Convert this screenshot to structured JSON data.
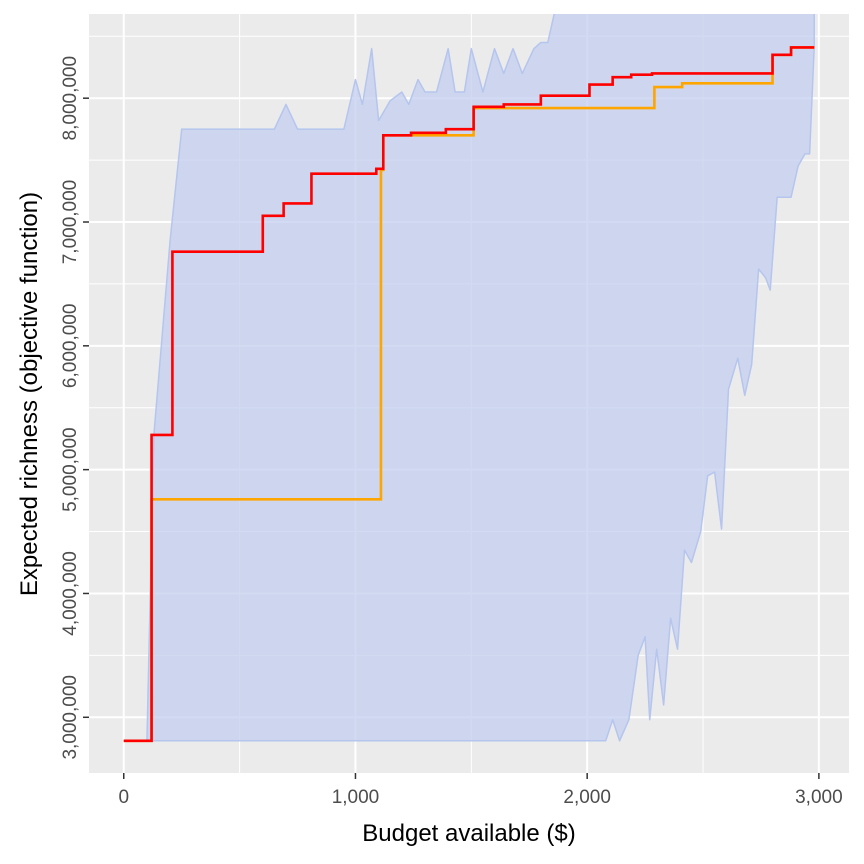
{
  "chart_data": {
    "type": "line",
    "title": "",
    "xlabel": "Budget available ($)",
    "ylabel": "Expected richness (objective function)",
    "xlim": [
      -150,
      3130
    ],
    "ylim": [
      2550000,
      8680000
    ],
    "x_ticks": [
      0,
      1000,
      2000,
      3000
    ],
    "x_tick_labels": [
      "0",
      "1,000",
      "2,000",
      "3,000"
    ],
    "y_ticks": [
      3000000,
      4000000,
      5000000,
      6000000,
      7000000,
      8000000
    ],
    "y_tick_labels": [
      "3,000,000",
      "4,000,000",
      "5,000,000",
      "6,000,000",
      "7,000,000",
      "8,000,000"
    ],
    "grid": true,
    "legend": "none",
    "colors": {
      "panel": "#ebebeb",
      "grid": "#ffffff",
      "ribbon_fill": "#c3cfef",
      "ribbon_edge": "#b5c5ee",
      "orange_line": "#ffa500",
      "red_line": "#ff0000"
    },
    "ribbon": {
      "upper": [
        [
          100,
          2810000
        ],
        [
          130,
          5280000
        ],
        [
          200,
          6850000
        ],
        [
          250,
          7750000
        ],
        [
          300,
          7750000
        ],
        [
          650,
          7750000
        ],
        [
          700,
          7950000
        ],
        [
          750,
          7750000
        ],
        [
          950,
          7750000
        ],
        [
          1000,
          8150000
        ],
        [
          1030,
          7950000
        ],
        [
          1070,
          8400000
        ],
        [
          1100,
          7820000
        ],
        [
          1150,
          7980000
        ],
        [
          1200,
          8050000
        ],
        [
          1230,
          7950000
        ],
        [
          1270,
          8150000
        ],
        [
          1300,
          8050000
        ],
        [
          1350,
          8050000
        ],
        [
          1400,
          8400000
        ],
        [
          1430,
          8050000
        ],
        [
          1470,
          8050000
        ],
        [
          1500,
          8400000
        ],
        [
          1550,
          8050000
        ],
        [
          1600,
          8400000
        ],
        [
          1640,
          8200000
        ],
        [
          1680,
          8400000
        ],
        [
          1720,
          8200000
        ],
        [
          1770,
          8400000
        ],
        [
          1800,
          8450000
        ],
        [
          1830,
          8450000
        ],
        [
          1860,
          8700000
        ],
        [
          1900,
          8700000
        ],
        [
          1950,
          8720000
        ],
        [
          2000,
          8850000
        ],
        [
          2050,
          8720000
        ],
        [
          2080,
          8720000
        ],
        [
          2110,
          8950000
        ],
        [
          2140,
          8750000
        ],
        [
          2180,
          8800000
        ],
        [
          2210,
          8950000
        ],
        [
          2240,
          8950000
        ],
        [
          2280,
          8850000
        ],
        [
          2310,
          8980000
        ],
        [
          2350,
          9020000
        ],
        [
          2380,
          9010000
        ],
        [
          2420,
          9100000
        ],
        [
          2460,
          9000000
        ],
        [
          2500,
          9100000
        ],
        [
          2550,
          9100000
        ],
        [
          2600,
          9100000
        ],
        [
          2650,
          9150000
        ],
        [
          2700,
          9150000
        ],
        [
          2760,
          9200000
        ],
        [
          2800,
          9340000
        ],
        [
          2900,
          9400000
        ],
        [
          2980,
          9400000
        ]
      ],
      "lower": [
        [
          100,
          2810000
        ],
        [
          130,
          2810000
        ],
        [
          2080,
          2810000
        ],
        [
          2110,
          2980000
        ],
        [
          2140,
          2810000
        ],
        [
          2180,
          2980000
        ],
        [
          2220,
          3500000
        ],
        [
          2250,
          3650000
        ],
        [
          2270,
          2980000
        ],
        [
          2300,
          3550000
        ],
        [
          2330,
          3100000
        ],
        [
          2360,
          3800000
        ],
        [
          2390,
          3550000
        ],
        [
          2420,
          4350000
        ],
        [
          2450,
          4250000
        ],
        [
          2490,
          4500000
        ],
        [
          2520,
          4950000
        ],
        [
          2550,
          4980000
        ],
        [
          2580,
          4520000
        ],
        [
          2610,
          5650000
        ],
        [
          2650,
          5900000
        ],
        [
          2680,
          5600000
        ],
        [
          2710,
          5850000
        ],
        [
          2740,
          6620000
        ],
        [
          2770,
          6550000
        ],
        [
          2790,
          6450000
        ],
        [
          2820,
          7200000
        ],
        [
          2850,
          7200000
        ],
        [
          2880,
          7200000
        ],
        [
          2910,
          7450000
        ],
        [
          2940,
          7550000
        ],
        [
          2960,
          7550000
        ],
        [
          2980,
          8420000
        ]
      ]
    },
    "series": [
      {
        "color": "#ffa500",
        "step": true,
        "points": [
          [
            0,
            2810000
          ],
          [
            120,
            2810000
          ],
          [
            120,
            4760000
          ],
          [
            1110,
            4760000
          ],
          [
            1110,
            7420000
          ],
          [
            1120,
            7420000
          ],
          [
            1120,
            7700000
          ],
          [
            1510,
            7700000
          ],
          [
            1510,
            7920000
          ],
          [
            2290,
            7920000
          ],
          [
            2290,
            8090000
          ],
          [
            2410,
            8090000
          ],
          [
            2410,
            8120000
          ],
          [
            2800,
            8120000
          ],
          [
            2800,
            8350000
          ],
          [
            2880,
            8350000
          ],
          [
            2880,
            8410000
          ],
          [
            2980,
            8410000
          ]
        ]
      },
      {
        "color": "#ff0000",
        "step": true,
        "points": [
          [
            0,
            2810000
          ],
          [
            120,
            2810000
          ],
          [
            120,
            5280000
          ],
          [
            210,
            5280000
          ],
          [
            210,
            6760000
          ],
          [
            600,
            6760000
          ],
          [
            600,
            7050000
          ],
          [
            690,
            7050000
          ],
          [
            690,
            7150000
          ],
          [
            810,
            7150000
          ],
          [
            810,
            7390000
          ],
          [
            1090,
            7390000
          ],
          [
            1090,
            7430000
          ],
          [
            1120,
            7430000
          ],
          [
            1120,
            7700000
          ],
          [
            1240,
            7700000
          ],
          [
            1240,
            7720000
          ],
          [
            1390,
            7720000
          ],
          [
            1390,
            7750000
          ],
          [
            1510,
            7750000
          ],
          [
            1510,
            7930000
          ],
          [
            1640,
            7930000
          ],
          [
            1640,
            7950000
          ],
          [
            1800,
            7950000
          ],
          [
            1800,
            8020000
          ],
          [
            2010,
            8020000
          ],
          [
            2010,
            8110000
          ],
          [
            2110,
            8110000
          ],
          [
            2110,
            8170000
          ],
          [
            2190,
            8170000
          ],
          [
            2190,
            8190000
          ],
          [
            2280,
            8190000
          ],
          [
            2280,
            8200000
          ],
          [
            2800,
            8200000
          ],
          [
            2800,
            8350000
          ],
          [
            2880,
            8350000
          ],
          [
            2880,
            8410000
          ],
          [
            2980,
            8410000
          ]
        ]
      }
    ]
  }
}
